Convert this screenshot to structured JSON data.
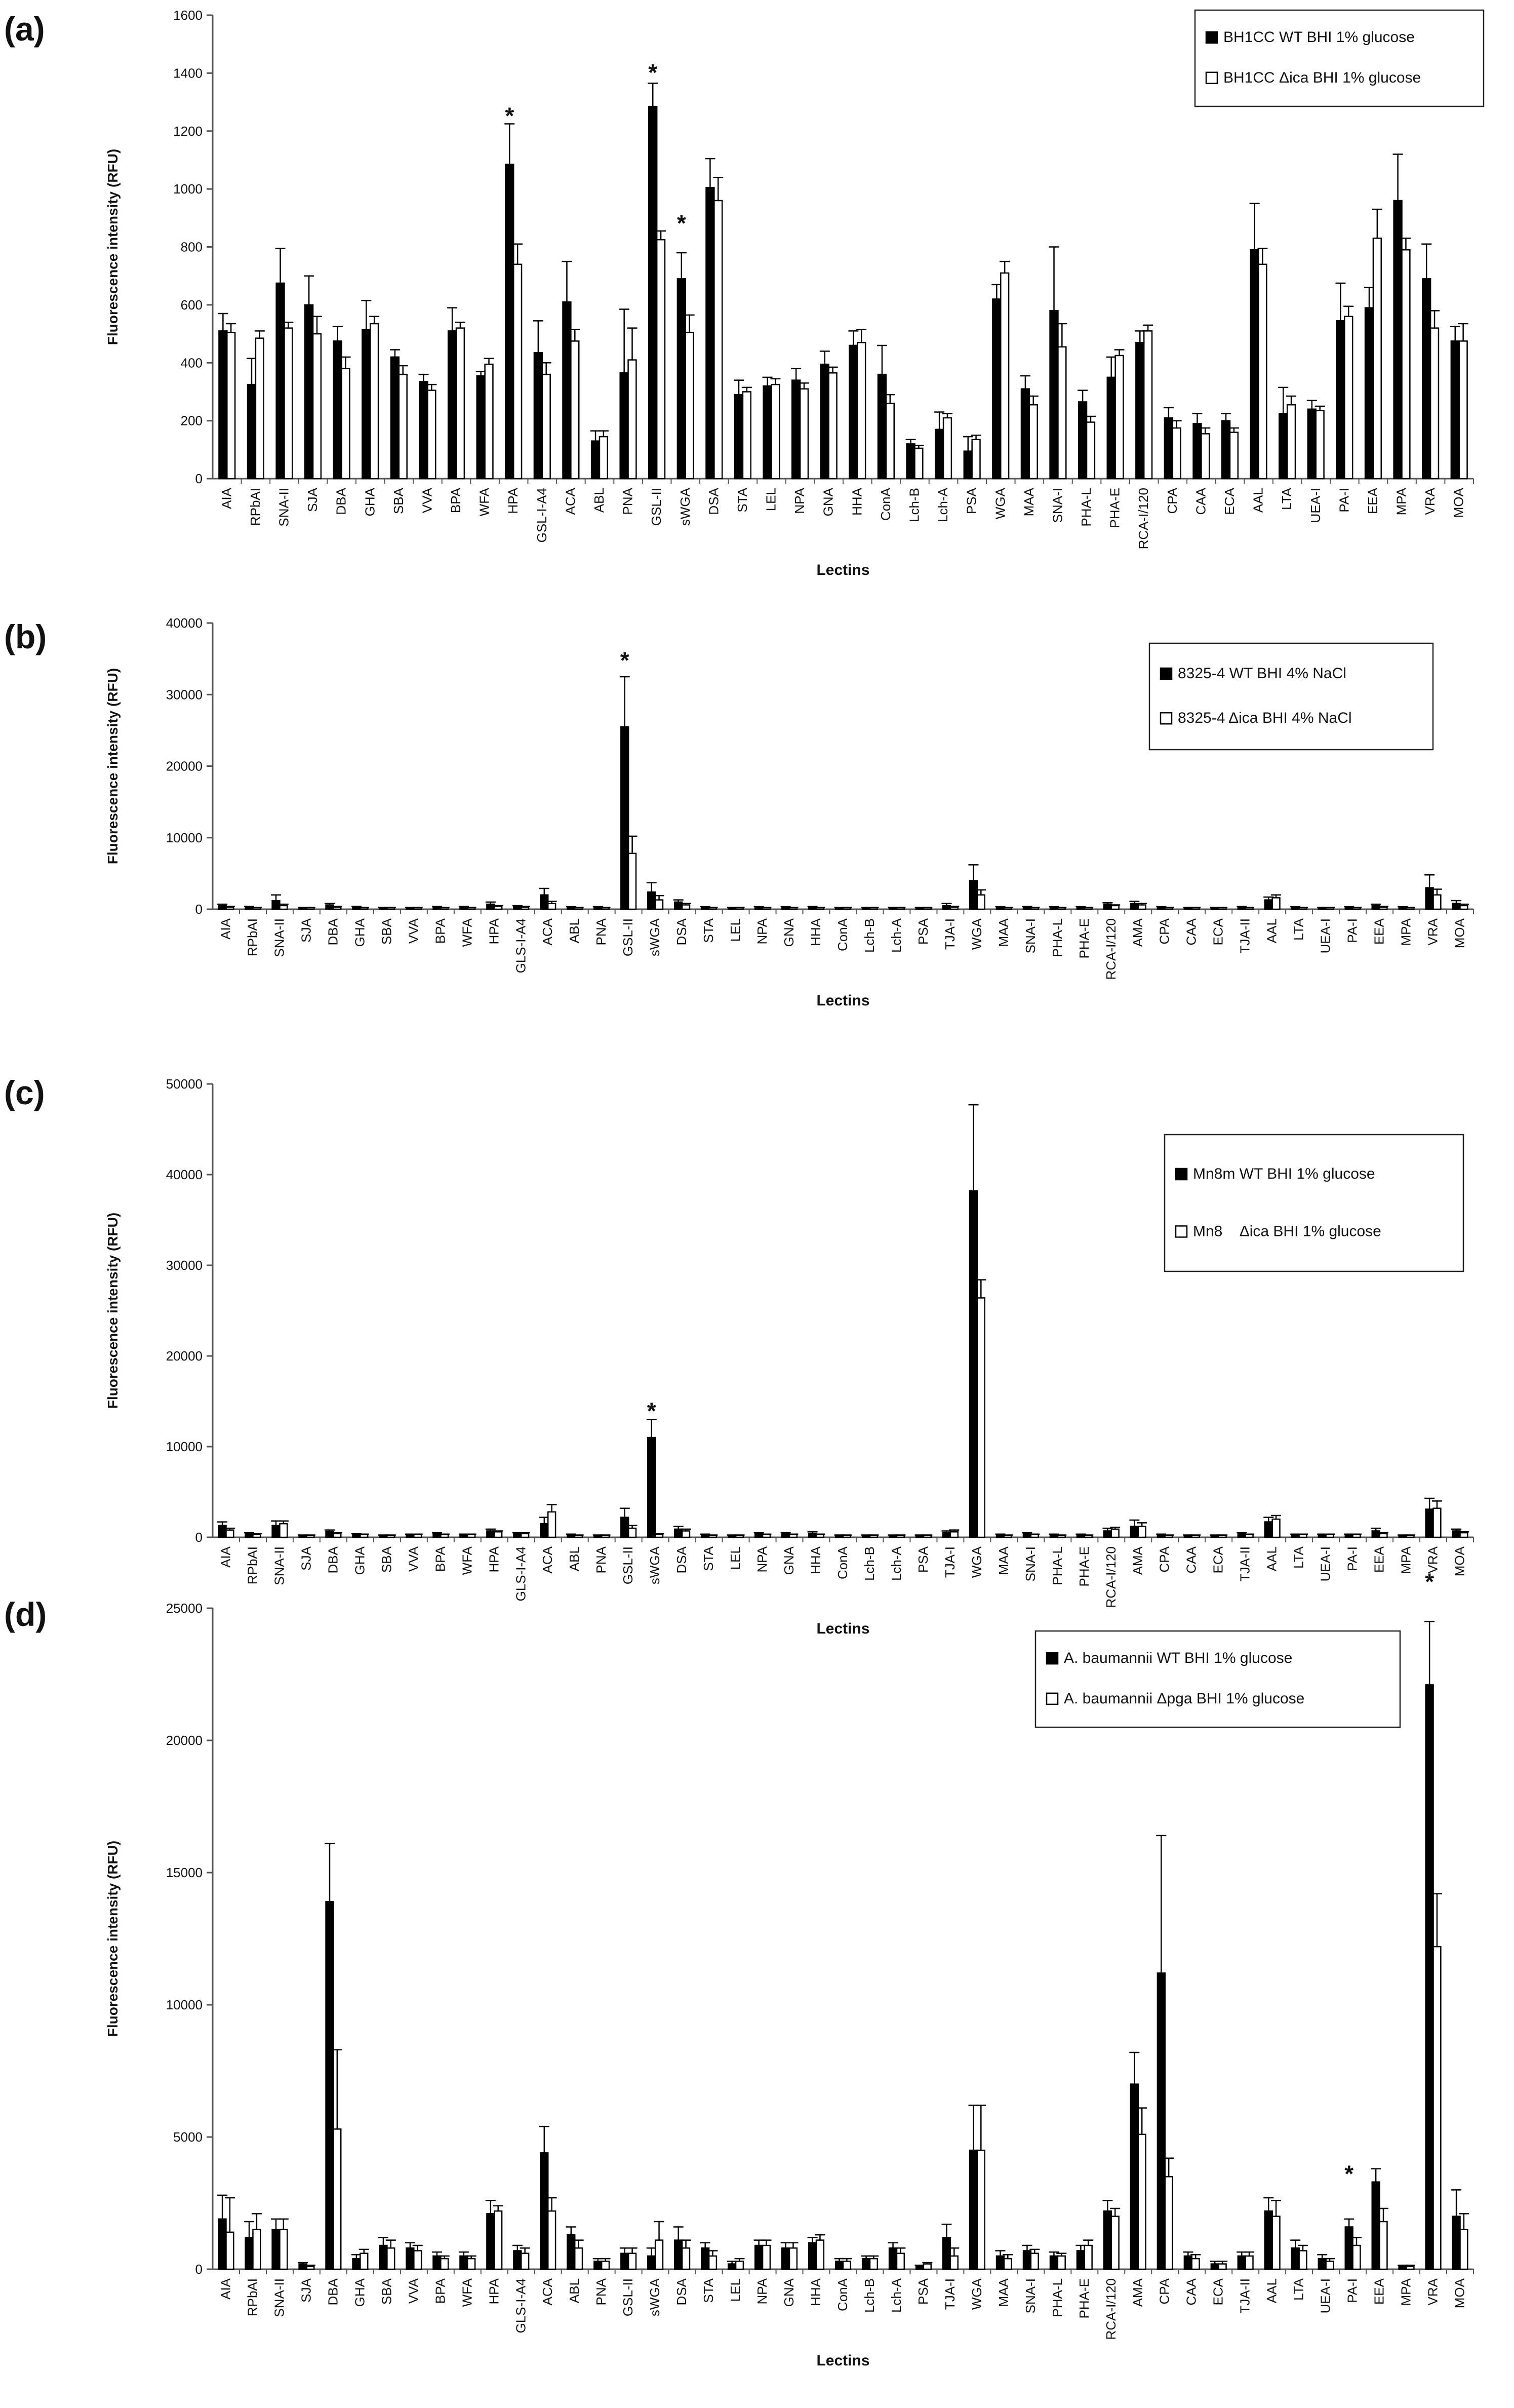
{
  "chart_data": [
    {
      "type": "bar",
      "panel_label": "(a)",
      "ylabel": "Fluorescence intensity (RFU)",
      "xlabel": "Lectins",
      "ylim": [
        0,
        1600
      ],
      "yticks": [
        0,
        200,
        400,
        600,
        800,
        1000,
        1200,
        1400,
        1600
      ],
      "legend_position": "top-right",
      "categories": [
        "AIA",
        "RPbAI",
        "SNA-II",
        "SJA",
        "DBA",
        "GHA",
        "SBA",
        "VVA",
        "BPA",
        "WFA",
        "HPA",
        "GSL-I-A4",
        "ACA",
        "ABL",
        "PNA",
        "GSL-II",
        "sWGA",
        "DSA",
        "STA",
        "LEL",
        "NPA",
        "GNA",
        "HHA",
        "ConA",
        "Lch-B",
        "Lch-A",
        "PSA",
        "WGA",
        "MAA",
        "SNA-I",
        "PHA-L",
        "PHA-E",
        "RCA-I/120",
        "CPA",
        "CAA",
        "ECA",
        "AAL",
        "LTA",
        "UEA-I",
        "PA-I",
        "EEA",
        "MPA",
        "VRA",
        "MOA"
      ],
      "series": [
        {
          "name": "BH1CC WT BHI 1% glucose",
          "fill": "black",
          "values": [
            510,
            325,
            675,
            600,
            475,
            515,
            420,
            335,
            510,
            355,
            1085,
            435,
            610,
            130,
            365,
            1285,
            690,
            1005,
            290,
            320,
            340,
            395,
            460,
            360,
            120,
            170,
            95,
            620,
            310,
            580,
            265,
            350,
            470,
            210,
            190,
            200,
            790,
            225,
            240,
            545,
            590,
            960,
            690,
            475
          ],
          "errors": [
            60,
            90,
            120,
            100,
            50,
            100,
            25,
            25,
            80,
            15,
            140,
            110,
            140,
            35,
            220,
            80,
            90,
            100,
            50,
            30,
            40,
            45,
            50,
            100,
            15,
            60,
            50,
            50,
            45,
            220,
            40,
            70,
            40,
            35,
            35,
            25,
            160,
            90,
            30,
            130,
            70,
            160,
            120,
            50
          ]
        },
        {
          "name": "BH1CC Δica BHI 1% glucose",
          "fill": "white",
          "values": [
            505,
            485,
            520,
            500,
            380,
            535,
            360,
            305,
            520,
            395,
            740,
            360,
            475,
            145,
            410,
            825,
            505,
            960,
            300,
            325,
            310,
            365,
            470,
            260,
            105,
            210,
            135,
            710,
            255,
            455,
            195,
            425,
            510,
            175,
            155,
            160,
            740,
            255,
            235,
            560,
            830,
            790,
            520,
            475
          ],
          "errors": [
            30,
            25,
            20,
            60,
            40,
            25,
            30,
            20,
            20,
            20,
            70,
            40,
            40,
            20,
            110,
            30,
            60,
            80,
            15,
            20,
            20,
            20,
            45,
            30,
            10,
            15,
            15,
            40,
            30,
            80,
            20,
            20,
            20,
            25,
            20,
            15,
            55,
            30,
            15,
            35,
            100,
            40,
            60,
            60
          ]
        }
      ],
      "annotations": [
        {
          "text": "*",
          "category": "HPA",
          "value": 1270
        },
        {
          "text": "*",
          "category": "GSL-II",
          "value": 1420
        },
        {
          "text": "*",
          "category": "sWGA",
          "value": 900
        }
      ]
    },
    {
      "type": "bar",
      "panel_label": "(b)",
      "ylabel": "Fluorescence intensity (RFU)",
      "xlabel": "Lectins",
      "ylim": [
        0,
        40000
      ],
      "yticks": [
        0,
        10000,
        20000,
        30000,
        40000
      ],
      "legend_position": "top-right",
      "categories": [
        "AIA",
        "RPbAI",
        "SNA-II",
        "SJA",
        "DBA",
        "GHA",
        "SBA",
        "VVA",
        "BPA",
        "WFA",
        "HPA",
        "GLS-I-A4",
        "ACA",
        "ABL",
        "PNA",
        "GSL-II",
        "sWGA",
        "DSA",
        "STA",
        "LEL",
        "NPA",
        "GNA",
        "HHA",
        "ConA",
        "Lch-B",
        "Lch-A",
        "PSA",
        "TJA-I",
        "WGA",
        "MAA",
        "SNA-I",
        "PHA-L",
        "PHA-E",
        "RCA-I/120",
        "AMA",
        "CPA",
        "CAA",
        "ECA",
        "TJA-II",
        "AAL",
        "LTA",
        "UEA-I",
        "PA-I",
        "EEA",
        "MPA",
        "VRA",
        "MOA"
      ],
      "series": [
        {
          "name": "8325-4 WT BHI 4% NaCl",
          "fill": "black",
          "values": [
            500,
            300,
            1200,
            200,
            600,
            300,
            200,
            200,
            300,
            300,
            700,
            400,
            2000,
            300,
            300,
            25500,
            2400,
            1000,
            300,
            200,
            300,
            300,
            300,
            200,
            200,
            200,
            200,
            500,
            4000,
            300,
            300,
            300,
            300,
            700,
            800,
            300,
            200,
            200,
            300,
            1300,
            300,
            200,
            300,
            500,
            300,
            3000,
            800
          ],
          "errors": [
            200,
            100,
            800,
            50,
            200,
            100,
            50,
            50,
            80,
            80,
            300,
            100,
            900,
            50,
            50,
            7000,
            1300,
            300,
            50,
            50,
            50,
            50,
            80,
            50,
            50,
            50,
            50,
            300,
            2200,
            50,
            80,
            50,
            50,
            200,
            300,
            50,
            50,
            50,
            80,
            400,
            50,
            50,
            50,
            200,
            50,
            1800,
            400
          ]
        },
        {
          "name": "8325-4 Δica BHI 4% NaCl",
          "fill": "white",
          "values": [
            300,
            200,
            500,
            200,
            300,
            200,
            200,
            200,
            200,
            200,
            400,
            300,
            800,
            200,
            200,
            7800,
            1300,
            600,
            200,
            200,
            200,
            200,
            200,
            200,
            200,
            200,
            200,
            300,
            2000,
            200,
            200,
            200,
            200,
            500,
            600,
            200,
            200,
            200,
            200,
            1600,
            200,
            200,
            200,
            300,
            200,
            2000,
            500
          ],
          "errors": [
            100,
            50,
            200,
            50,
            100,
            50,
            50,
            50,
            50,
            50,
            100,
            100,
            300,
            50,
            50,
            2400,
            600,
            200,
            50,
            50,
            50,
            50,
            50,
            50,
            50,
            50,
            50,
            100,
            700,
            50,
            50,
            50,
            50,
            100,
            200,
            50,
            50,
            50,
            50,
            400,
            50,
            50,
            50,
            100,
            50,
            800,
            200
          ]
        }
      ],
      "annotations": [
        {
          "text": "*",
          "category": "GSL-II",
          "value": 35500
        }
      ]
    },
    {
      "type": "bar",
      "panel_label": "(c)",
      "ylabel": "Fluorescence intensity (RFU)",
      "xlabel": "Lectins",
      "ylim": [
        0,
        50000
      ],
      "yticks": [
        0,
        10000,
        20000,
        30000,
        40000,
        50000
      ],
      "legend_position": "top-right",
      "categories": [
        "AIA",
        "RPbAI",
        "SNA-II",
        "SJA",
        "DBA",
        "GHA",
        "SBA",
        "VVA",
        "BPA",
        "WFA",
        "HPA",
        "GLS-I-A4",
        "ACA",
        "ABL",
        "PNA",
        "GSL-II",
        "sWGA",
        "DSA",
        "STA",
        "LEL",
        "NPA",
        "GNA",
        "HHA",
        "ConA",
        "Lch-B",
        "Lch-A",
        "PSA",
        "TJA-I",
        "WGA",
        "MAA",
        "SNA-I",
        "PHA-L",
        "PHA-E",
        "RCA-I/120",
        "AMA",
        "CPA",
        "CAA",
        "ECA",
        "TJA-II",
        "AAL",
        "LTA",
        "UEA-I",
        "PA-I",
        "EEA",
        "MPA",
        "VRA",
        "MOA"
      ],
      "series": [
        {
          "name": "Mn8m WT BHI 1% glucose",
          "fill": "black",
          "values": [
            1300,
            400,
            1300,
            200,
            600,
            300,
            200,
            300,
            400,
            300,
            700,
            400,
            1500,
            300,
            200,
            2200,
            11000,
            900,
            300,
            200,
            400,
            400,
            400,
            200,
            200,
            200,
            200,
            500,
            38200,
            300,
            400,
            300,
            300,
            700,
            1200,
            300,
            200,
            200,
            400,
            1700,
            300,
            300,
            300,
            700,
            200,
            3100,
            700
          ],
          "errors": [
            400,
            100,
            500,
            50,
            200,
            100,
            50,
            50,
            100,
            50,
            200,
            100,
            700,
            50,
            50,
            1000,
            2000,
            300,
            50,
            50,
            100,
            100,
            200,
            50,
            50,
            50,
            50,
            200,
            9500,
            50,
            100,
            50,
            50,
            300,
            700,
            50,
            50,
            50,
            100,
            500,
            50,
            50,
            50,
            300,
            50,
            1200,
            200
          ]
        },
        {
          "name": "Mn8    Δica BHI 1% glucose",
          "fill": "white",
          "values": [
            800,
            300,
            1500,
            200,
            400,
            300,
            200,
            300,
            300,
            300,
            600,
            400,
            2800,
            200,
            200,
            1000,
            300,
            700,
            200,
            200,
            300,
            300,
            300,
            200,
            200,
            200,
            200,
            600,
            26400,
            200,
            300,
            200,
            200,
            900,
            1200,
            200,
            200,
            200,
            300,
            2000,
            300,
            300,
            300,
            400,
            200,
            3200,
            500
          ],
          "errors": [
            200,
            100,
            300,
            50,
            100,
            50,
            50,
            50,
            50,
            50,
            100,
            100,
            800,
            50,
            50,
            300,
            100,
            200,
            50,
            50,
            50,
            50,
            50,
            50,
            50,
            50,
            50,
            200,
            2000,
            50,
            50,
            50,
            50,
            200,
            400,
            50,
            50,
            50,
            50,
            400,
            50,
            50,
            50,
            100,
            50,
            800,
            100
          ]
        }
      ],
      "annotations": [
        {
          "text": "*",
          "category": "sWGA",
          "value": 14500
        }
      ]
    },
    {
      "type": "bar",
      "panel_label": "(d)",
      "ylabel": "Fluorescence intensity (RFU)",
      "xlabel": "Lectins",
      "ylim": [
        0,
        25000
      ],
      "yticks": [
        0,
        5000,
        10000,
        15000,
        20000,
        25000
      ],
      "legend_position": "top-right",
      "categories": [
        "AIA",
        "RPbAI",
        "SNA-II",
        "SJA",
        "DBA",
        "GHA",
        "SBA",
        "VVA",
        "BPA",
        "WFA",
        "HPA",
        "GLS-I-A4",
        "ACA",
        "ABL",
        "PNA",
        "GSL-II",
        "sWGA",
        "DSA",
        "STA",
        "LEL",
        "NPA",
        "GNA",
        "HHA",
        "ConA",
        "Lch-B",
        "Lch-A",
        "PSA",
        "TJA-I",
        "WGA",
        "MAA",
        "SNA-I",
        "PHA-L",
        "PHA-E",
        "RCA-I/120",
        "AMA",
        "CPA",
        "CAA",
        "ECA",
        "TJA-II",
        "AAL",
        "LTA",
        "UEA-I",
        "PA-I",
        "EEA",
        "MPA",
        "VRA",
        "MOA"
      ],
      "series": [
        {
          "name": "A. baumannii WT BHI 1% glucose",
          "fill": "black",
          "values": [
            1900,
            1200,
            1500,
            200,
            13900,
            400,
            900,
            800,
            500,
            500,
            2100,
            700,
            4400,
            1300,
            300,
            600,
            500,
            1100,
            800,
            200,
            900,
            800,
            1000,
            300,
            400,
            800,
            100,
            1200,
            4500,
            500,
            700,
            500,
            700,
            2200,
            7000,
            11200,
            500,
            200,
            500,
            2200,
            800,
            400,
            1600,
            3300,
            100,
            22100,
            2000
          ],
          "errors": [
            900,
            600,
            400,
            50,
            2200,
            150,
            300,
            200,
            150,
            150,
            500,
            200,
            1000,
            300,
            100,
            200,
            300,
            500,
            200,
            100,
            200,
            200,
            200,
            100,
            100,
            200,
            50,
            500,
            1700,
            200,
            200,
            150,
            200,
            400,
            1200,
            5200,
            150,
            100,
            150,
            500,
            300,
            150,
            300,
            500,
            50,
            2400,
            1000
          ]
        },
        {
          "name": "A. baumannii Δpga BHI 1% glucose",
          "fill": "white",
          "values": [
            1400,
            1500,
            1500,
            100,
            5300,
            600,
            800,
            700,
            400,
            400,
            2200,
            600,
            2200,
            800,
            300,
            600,
            1100,
            800,
            500,
            300,
            900,
            800,
            1100,
            300,
            400,
            600,
            200,
            500,
            4500,
            400,
            600,
            500,
            900,
            2000,
            5100,
            3500,
            400,
            200,
            500,
            2000,
            700,
            300,
            900,
            1800,
            100,
            12200,
            1500
          ],
          "errors": [
            1300,
            600,
            400,
            50,
            3000,
            150,
            300,
            200,
            100,
            100,
            200,
            200,
            500,
            300,
            100,
            200,
            700,
            300,
            200,
            100,
            200,
            200,
            200,
            100,
            100,
            200,
            50,
            300,
            1700,
            150,
            150,
            100,
            200,
            300,
            1000,
            700,
            150,
            100,
            150,
            600,
            200,
            100,
            300,
            500,
            50,
            2000,
            600
          ]
        }
      ],
      "annotations": [
        {
          "text": "*",
          "category": "PA-I",
          "value": 3800
        },
        {
          "text": "*",
          "category": "VRA",
          "value": 26200
        }
      ]
    }
  ]
}
